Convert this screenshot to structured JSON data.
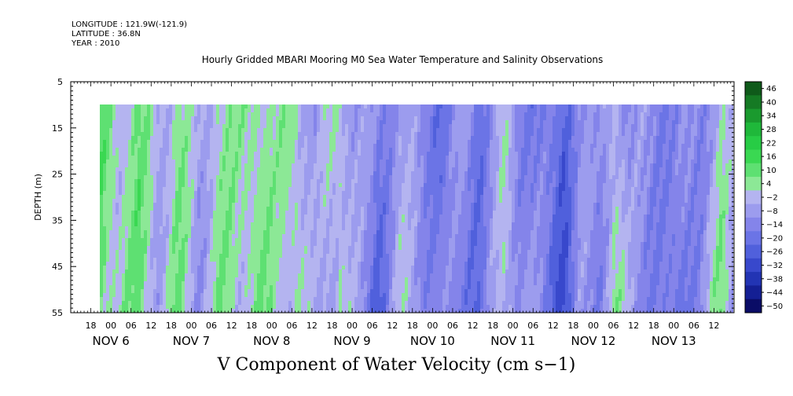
{
  "header": {
    "longitude": "LONGITUDE : 121.9W(-121.9)",
    "latitude": "LATITUDE : 36.8N",
    "year": "YEAR : 2010"
  },
  "chart_data": {
    "type": "heatmap",
    "title": "Hourly Gridded MBARI Mooring M0 Sea Water Temperature and Salinity Observations",
    "variable_label": "V Component of Water Velocity (cm s−1)",
    "ylabel": "DEPTH (m)",
    "ylim": [
      55,
      5
    ],
    "y_ticks": [
      "5",
      "15",
      "25",
      "35",
      "45",
      "55"
    ],
    "data_depth_range": [
      10,
      55
    ],
    "x_range_hours_labels": {
      "start": "NOV 5 12:00",
      "end": "NOV 13 18:00"
    },
    "x_hour_ticks": [
      "18",
      "00",
      "06",
      "12",
      "18",
      "00",
      "06",
      "12",
      "18",
      "00",
      "06",
      "12",
      "18",
      "00",
      "06",
      "12",
      "18",
      "00",
      "06",
      "12",
      "18",
      "00",
      "06",
      "12",
      "18",
      "00",
      "06",
      "12",
      "18",
      "00",
      "06",
      "12"
    ],
    "x_date_labels": [
      "NOV 6",
      "NOV 7",
      "NOV 8",
      "NOV 9",
      "NOV 10",
      "NOV 11",
      "NOV 12",
      "NOV 13"
    ],
    "data_start": "NOV 5 21:00",
    "data_end": "NOV 13 18:00",
    "colorbar": {
      "levels": [
        "46",
        "40",
        "34",
        "28",
        "22",
        "16",
        "10",
        "4",
        "−2",
        "−8",
        "−14",
        "−20",
        "−26",
        "−32",
        "−38",
        "−44",
        "−50"
      ],
      "min": -50,
      "max": 50,
      "colors_high_to_low": [
        "#0f5a1a",
        "#157a24",
        "#1a9a2e",
        "#1fb83a",
        "#27cc45",
        "#3ad852",
        "#5ee072",
        "#8ce896",
        "#b4b4f0",
        "#9c9cee",
        "#8484ea",
        "#6b74e6",
        "#5060dc",
        "#3848cc",
        "#2234b4",
        "#141f94",
        "#0a0c66"
      ]
    },
    "grid": false
  }
}
